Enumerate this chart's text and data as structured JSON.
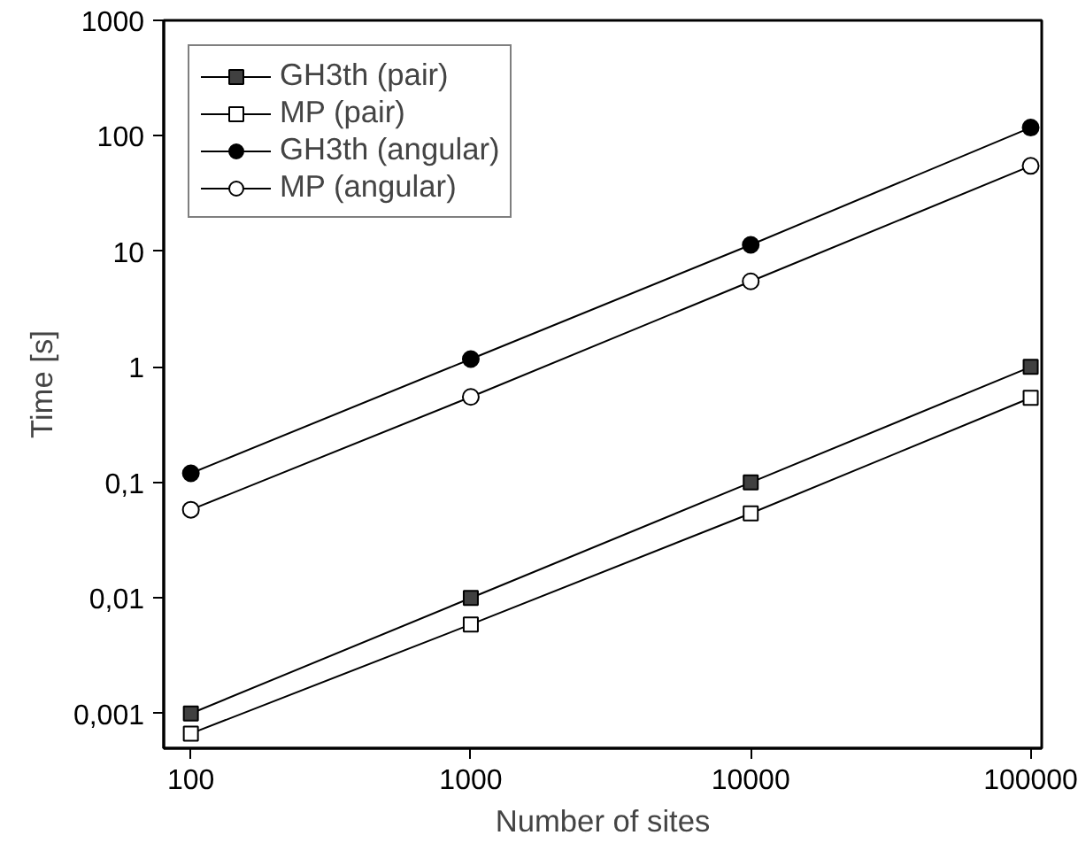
{
  "chart_data": {
    "type": "line",
    "xlabel": "Number of sites",
    "ylabel": "Time [s]",
    "x": [
      100,
      1000,
      10000,
      100000
    ],
    "series": [
      {
        "name": "GH3th (pair)",
        "color": "#404040",
        "marker": "square",
        "values": [
          0.001,
          0.01,
          0.1,
          1
        ]
      },
      {
        "name": "MP (pair)",
        "color": "#ffffff",
        "marker": "square",
        "values": [
          0.00067,
          0.0059,
          0.054,
          0.54
        ]
      },
      {
        "name": "GH3th (angular)",
        "color": "#000000",
        "marker": "circle",
        "values": [
          0.12,
          1.17,
          11.4,
          118
        ]
      },
      {
        "name": "MP (angular)",
        "color": "#ffffff",
        "marker": "circle",
        "values": [
          0.058,
          0.55,
          5.5,
          55
        ]
      }
    ],
    "log": "xy",
    "xlim": [
      80,
      109500
    ],
    "ylim": [
      0.0005,
      1000
    ],
    "xticks": [
      100,
      1000,
      10000,
      100000
    ],
    "yticks": [
      {
        "value": 0.001,
        "label": "0,001"
      },
      {
        "value": 0.01,
        "label": "0,01"
      },
      {
        "value": 0.1,
        "label": "0,1"
      },
      1,
      10,
      100,
      1000
    ],
    "grid": false,
    "legend": "top left",
    "line_style": "solid"
  }
}
